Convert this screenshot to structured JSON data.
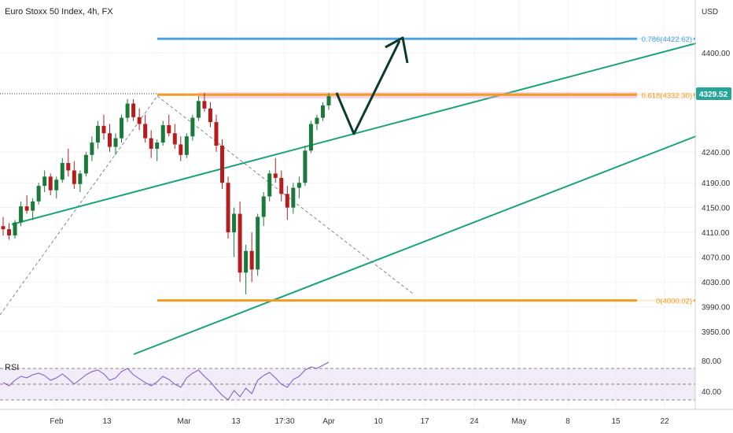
{
  "header": {
    "title": "Euro Stoxx 50 Index, 4h, FX",
    "currency": "USD"
  },
  "chart_data": {
    "type": "candlestick",
    "title": "Euro Stoxx 50 Index, 4h, FX",
    "y_axis": {
      "label": "USD",
      "ticks": [
        3950,
        3990,
        4030,
        4070,
        4110,
        4150,
        4190,
        4240,
        4400
      ],
      "tick_labels": [
        "3950.00",
        "3990.00",
        "4030.00",
        "4070.00",
        "4110.00",
        "4150.00",
        "4190.00",
        "4240.00",
        "4400.00"
      ],
      "range": [
        3920,
        4470
      ],
      "price_calibration": [
        [
          4400,
          67
        ],
        [
          3950,
          421
        ]
      ]
    },
    "x_axis": {
      "tick_labels": [
        "Feb",
        "13",
        "Mar",
        "13",
        "17:30",
        "Apr",
        "10",
        "17",
        "24",
        "May",
        "8",
        "15",
        "22"
      ]
    },
    "last_price": "4329.52",
    "last_price_color": "#26a69a",
    "fib_levels": [
      {
        "label": "0.786(4422.62)",
        "value": 4422.62,
        "color": "#4fa3e0"
      },
      {
        "label": "0.618(4332.30)",
        "value": 4332.3,
        "color": "#f59a23"
      },
      {
        "label": "0(4000.02)",
        "value": 4000.02,
        "color": "#f59a23"
      }
    ],
    "candles": [
      [
        4120,
        4135,
        4105,
        4115
      ],
      [
        4115,
        4125,
        4098,
        4105
      ],
      [
        4105,
        4130,
        4100,
        4126
      ],
      [
        4126,
        4160,
        4120,
        4152
      ],
      [
        4152,
        4170,
        4140,
        4145
      ],
      [
        4145,
        4165,
        4130,
        4160
      ],
      [
        4160,
        4190,
        4155,
        4185
      ],
      [
        4185,
        4210,
        4175,
        4200
      ],
      [
        4200,
        4205,
        4170,
        4178
      ],
      [
        4178,
        4200,
        4165,
        4195
      ],
      [
        4195,
        4230,
        4190,
        4222
      ],
      [
        4222,
        4245,
        4200,
        4210
      ],
      [
        4210,
        4225,
        4180,
        4188
      ],
      [
        4188,
        4210,
        4175,
        4205
      ],
      [
        4205,
        4240,
        4200,
        4235
      ],
      [
        4235,
        4265,
        4225,
        4255
      ],
      [
        4255,
        4290,
        4245,
        4282
      ],
      [
        4282,
        4300,
        4260,
        4270
      ],
      [
        4270,
        4285,
        4240,
        4248
      ],
      [
        4248,
        4270,
        4235,
        4262
      ],
      [
        4262,
        4300,
        4255,
        4295
      ],
      [
        4295,
        4325,
        4288,
        4318
      ],
      [
        4318,
        4325,
        4290,
        4296
      ],
      [
        4296,
        4310,
        4275,
        4285
      ],
      [
        4285,
        4300,
        4255,
        4262
      ],
      [
        4262,
        4275,
        4230,
        4245
      ],
      [
        4245,
        4260,
        4225,
        4255
      ],
      [
        4255,
        4290,
        4250,
        4283
      ],
      [
        4283,
        4300,
        4265,
        4270
      ],
      [
        4270,
        4285,
        4245,
        4252
      ],
      [
        4252,
        4265,
        4225,
        4235
      ],
      [
        4235,
        4270,
        4230,
        4265
      ],
      [
        4265,
        4300,
        4258,
        4295
      ],
      [
        4295,
        4330,
        4290,
        4322
      ],
      [
        4322,
        4335,
        4305,
        4310
      ],
      [
        4310,
        4320,
        4280,
        4288
      ],
      [
        4288,
        4300,
        4240,
        4250
      ],
      [
        4250,
        4260,
        4180,
        4190
      ],
      [
        4190,
        4200,
        4100,
        4110
      ],
      [
        4110,
        4150,
        4070,
        4140
      ],
      [
        4140,
        4160,
        4030,
        4045
      ],
      [
        4045,
        4090,
        4010,
        4080
      ],
      [
        4080,
        4110,
        4030,
        4050
      ],
      [
        4050,
        4140,
        4040,
        4135
      ],
      [
        4135,
        4175,
        4120,
        4168
      ],
      [
        4168,
        4210,
        4160,
        4205
      ],
      [
        4205,
        4230,
        4190,
        4198
      ],
      [
        4198,
        4210,
        4160,
        4172
      ],
      [
        4172,
        4185,
        4130,
        4150
      ],
      [
        4150,
        4190,
        4140,
        4182
      ],
      [
        4182,
        4200,
        4165,
        4190
      ],
      [
        4190,
        4250,
        4185,
        4242
      ],
      [
        4242,
        4290,
        4238,
        4285
      ],
      [
        4285,
        4300,
        4275,
        4295
      ],
      [
        4295,
        4320,
        4290,
        4315
      ],
      [
        4315,
        4335,
        4308,
        4330
      ]
    ],
    "rsi": {
      "label": "RSI",
      "ticks": [
        "80.00",
        "40.00"
      ],
      "band": [
        30,
        70
      ],
      "values": [
        52,
        48,
        55,
        60,
        58,
        62,
        64,
        61,
        55,
        58,
        63,
        57,
        50,
        56,
        62,
        66,
        68,
        63,
        55,
        58,
        66,
        70,
        62,
        57,
        52,
        48,
        53,
        60,
        56,
        50,
        46,
        58,
        64,
        68,
        60,
        53,
        44,
        36,
        30,
        42,
        34,
        45,
        38,
        55,
        61,
        65,
        58,
        50,
        46,
        56,
        60,
        68,
        72,
        70,
        74,
        78
      ]
    }
  }
}
